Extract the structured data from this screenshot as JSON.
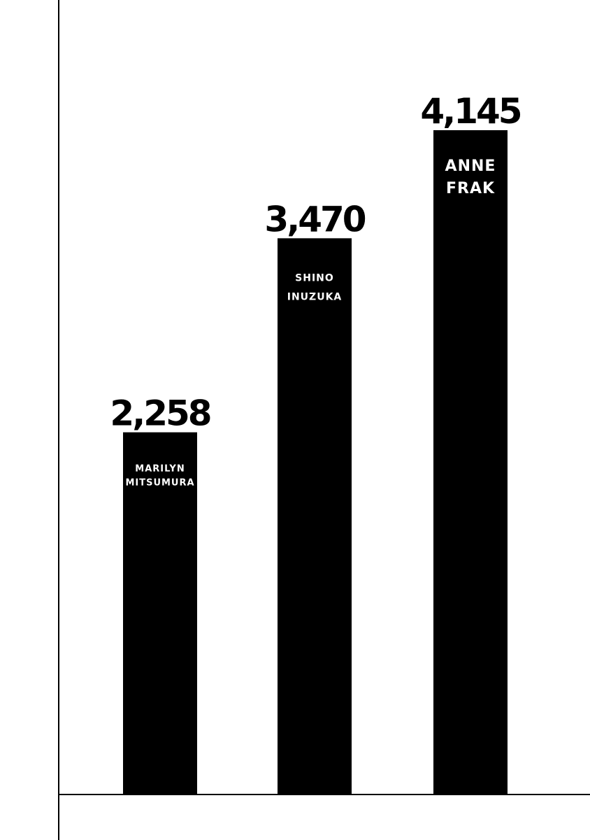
{
  "chart_data": {
    "type": "bar",
    "title": "",
    "xlabel": "",
    "ylabel": "",
    "categories": [
      [
        "MARILYN",
        "MITSUMURA"
      ],
      [
        "SHINO",
        "INUZUKA"
      ],
      [
        "ANNE",
        "FRAK"
      ]
    ],
    "values": [
      2258,
      3470,
      4145
    ],
    "value_labels": [
      "2,258",
      "3,470",
      "4,145"
    ],
    "ylim": [
      0,
      4145
    ],
    "grid": false,
    "legend": "none",
    "bar_color": "#000000",
    "category_label_color": "#ffffff",
    "category_label_placement": "inside-top"
  }
}
